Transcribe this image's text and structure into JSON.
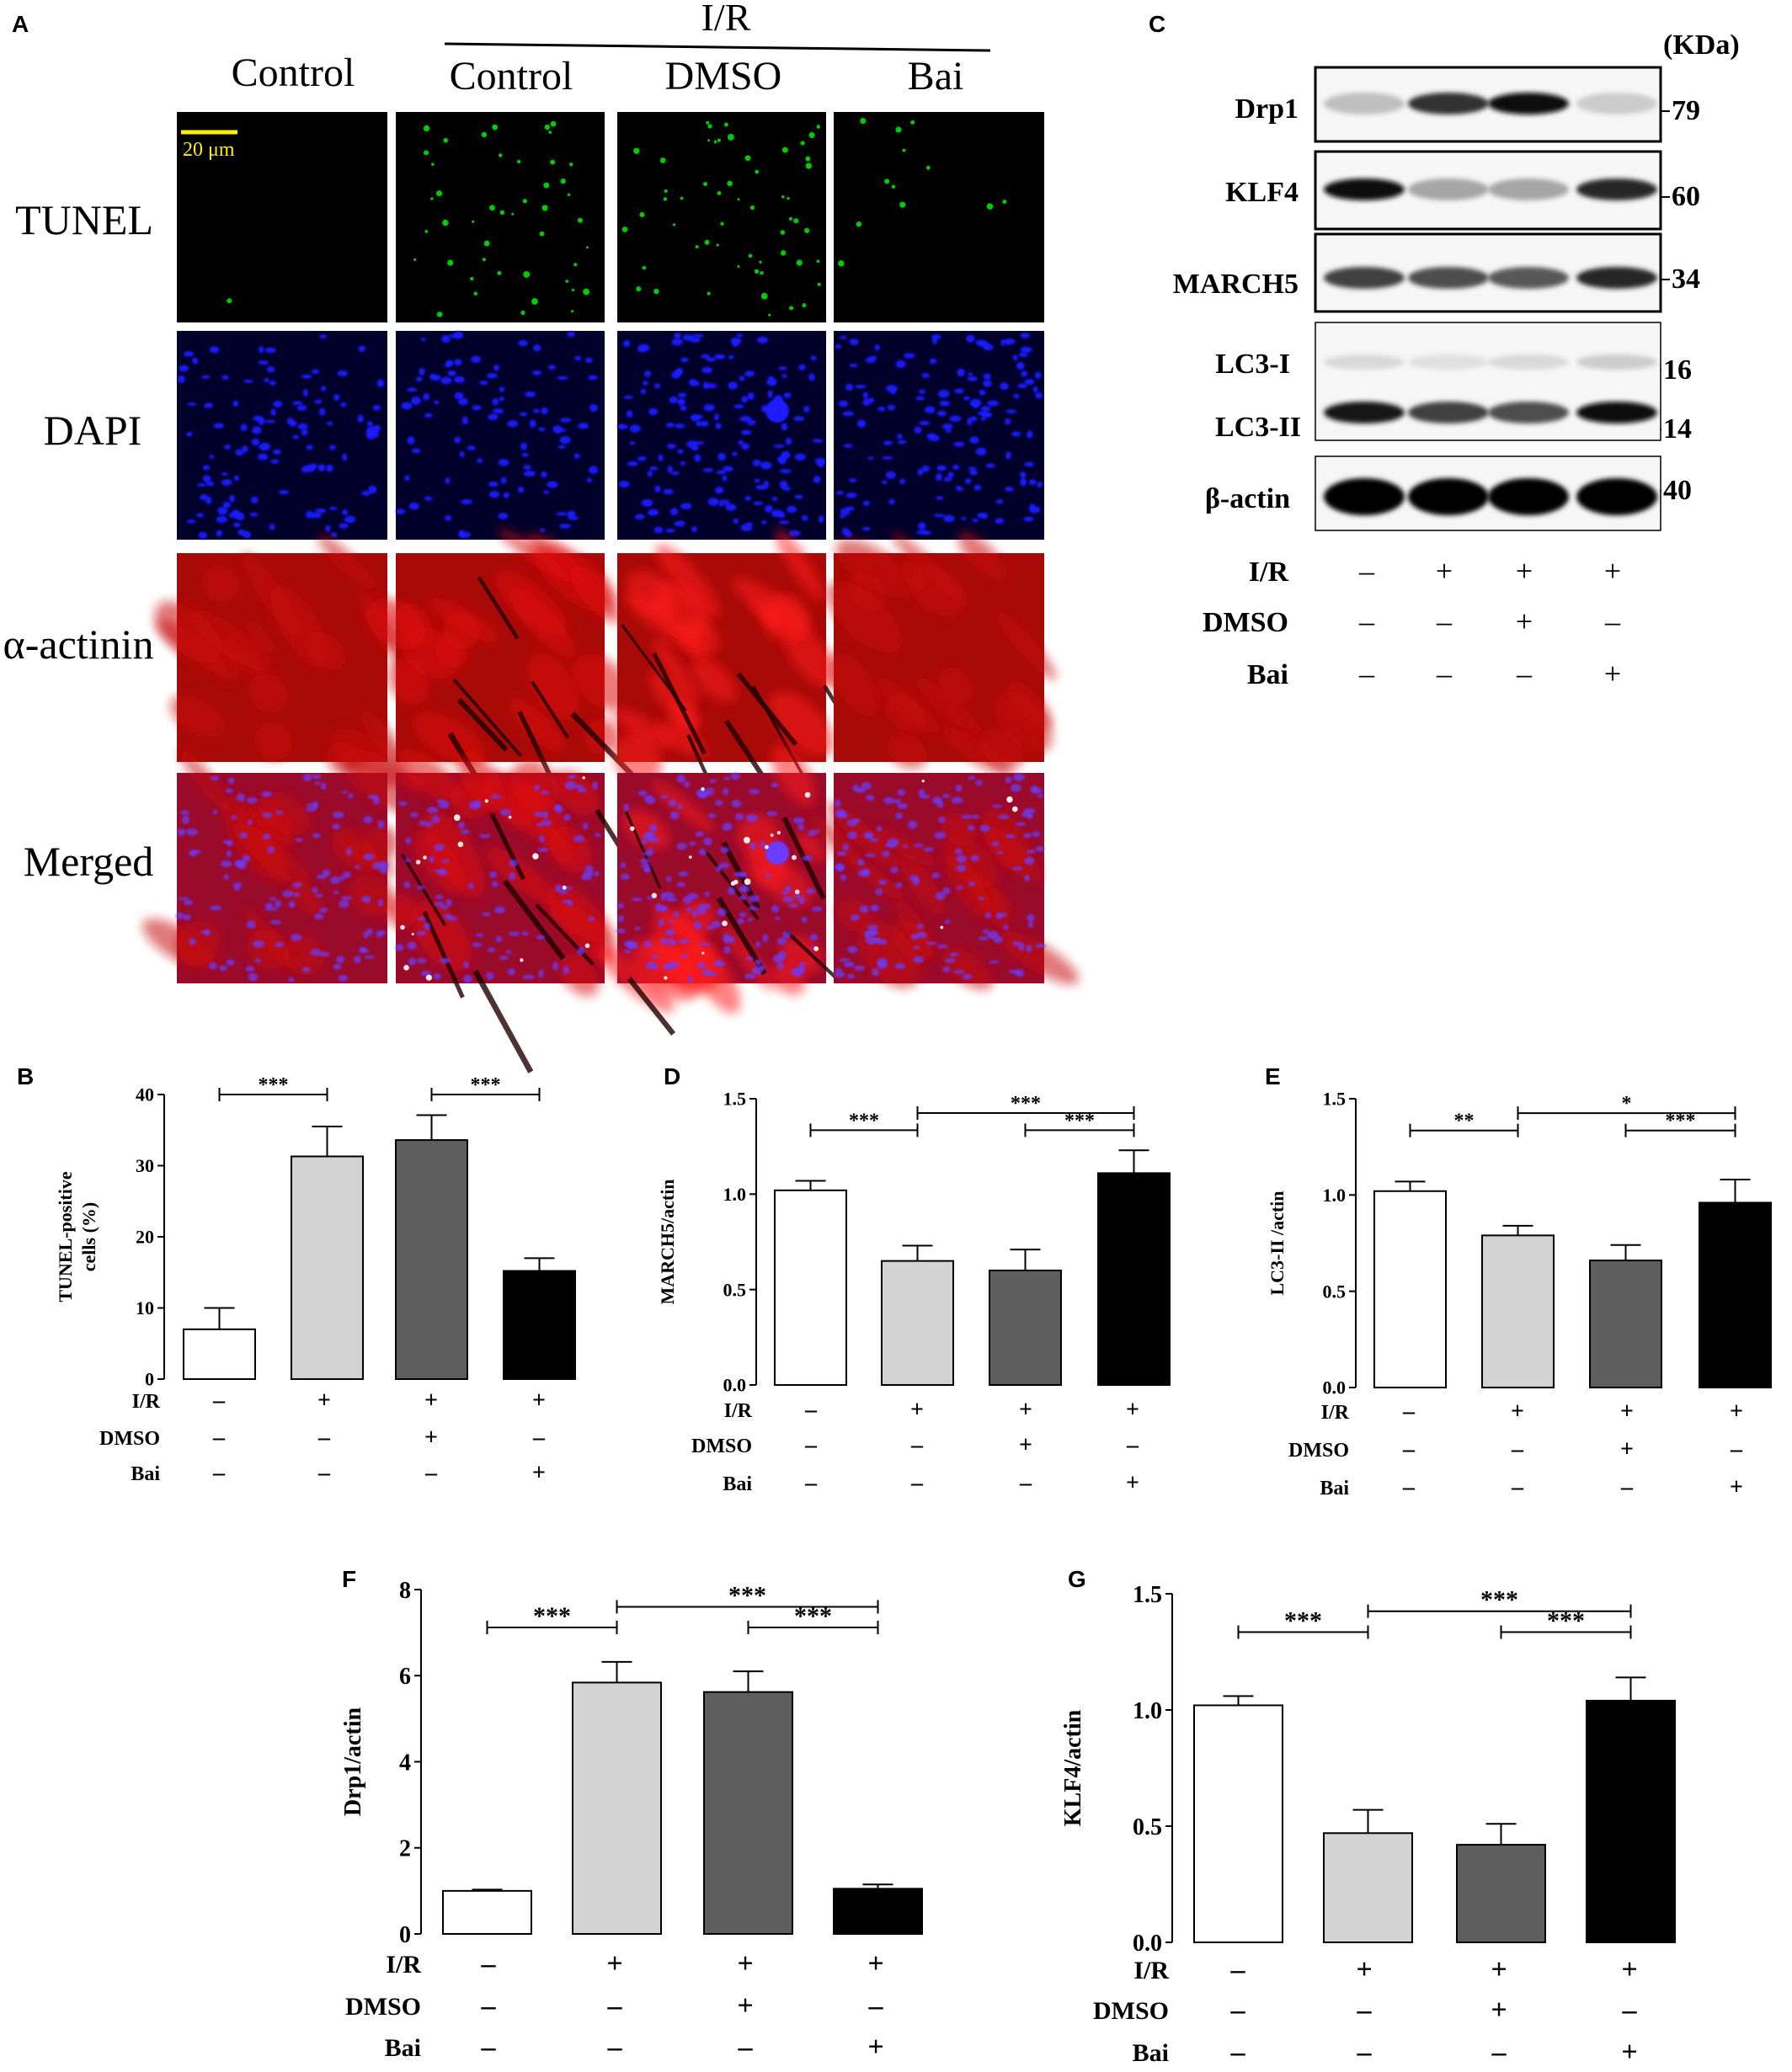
{
  "panel_a": {
    "letter": "A",
    "ir_label": "I/R",
    "column_labels": [
      "Control",
      "Control",
      "DMSO",
      "Bai"
    ],
    "row_labels": [
      "TUNEL",
      "DAPI",
      "α-actinin",
      "Merged"
    ],
    "scale_bar": "20 μm"
  },
  "panel_c": {
    "letter": "C",
    "unit_label": "(KDa)",
    "bands": [
      {
        "name": "Drp1",
        "kda": "79"
      },
      {
        "name": "KLF4",
        "kda": "60"
      },
      {
        "name": "MARCH5",
        "kda": "34"
      },
      {
        "name": "LC3-I",
        "kda": "16"
      },
      {
        "name": "LC3-II",
        "kda": "14"
      },
      {
        "name": "β-actin",
        "kda": "40"
      }
    ],
    "conditions": [
      {
        "label": "I/R",
        "signs": [
          "–",
          "+",
          "+",
          "+"
        ]
      },
      {
        "label": "DMSO",
        "signs": [
          "–",
          "–",
          "+",
          "–"
        ]
      },
      {
        "label": "Bai",
        "signs": [
          "–",
          "–",
          "–",
          "+"
        ]
      }
    ],
    "band_intensity": {
      "Drp1": [
        0.25,
        0.8,
        0.95,
        0.2
      ],
      "KLF4": [
        0.95,
        0.35,
        0.35,
        0.85
      ],
      "MARCH5": [
        0.75,
        0.7,
        0.65,
        0.85
      ],
      "LC3-I": [
        0.15,
        0.12,
        0.15,
        0.2
      ],
      "LC3-II": [
        0.9,
        0.75,
        0.7,
        0.95
      ],
      "β-actin": [
        1,
        1,
        1,
        1
      ]
    }
  },
  "conditions_rows": [
    {
      "label": "I/R",
      "signs": [
        "–",
        "+",
        "+",
        "+"
      ]
    },
    {
      "label": "DMSO",
      "signs": [
        "–",
        "–",
        "+",
        "–"
      ]
    },
    {
      "label": "Bai",
      "signs": [
        "–",
        "–",
        "–",
        "+"
      ]
    }
  ],
  "colors": {
    "bars": [
      "#ffffff",
      "#d3d3d3",
      "#5e5e5e",
      "#000000"
    ],
    "tunel": "#00e000",
    "dapi": "#1a1aff",
    "actinin": "#d40000",
    "scale_bar": "#ffee00"
  },
  "chart_data": [
    {
      "type": "bar",
      "panel": "B",
      "ylabel": "TUNEL-positive cells (%)",
      "ylabel_lines": [
        "TUNEL-positive",
        "cells (%)"
      ],
      "categories": [
        "",
        "",
        "",
        ""
      ],
      "values": [
        7,
        31.3,
        33.6,
        15.2
      ],
      "errors": [
        3,
        4.2,
        3.5,
        1.8
      ],
      "ylim": [
        0,
        40
      ],
      "yticks": [
        "0",
        "10",
        "20",
        "30",
        "40"
      ],
      "significance": [
        {
          "from": 0,
          "to": 1,
          "label": "***"
        },
        {
          "from": 2,
          "to": 3,
          "label": "***"
        }
      ]
    },
    {
      "type": "bar",
      "panel": "D",
      "ylabel": "MARCH5/actin",
      "categories": [
        "",
        "",
        "",
        ""
      ],
      "values": [
        1.02,
        0.65,
        0.6,
        1.11
      ],
      "errors": [
        0.05,
        0.08,
        0.11,
        0.12
      ],
      "ylim": [
        0,
        1.5
      ],
      "yticks": [
        "0.0",
        "0.5",
        "1.0",
        "1.5"
      ],
      "significance": [
        {
          "from": 0,
          "to": 1,
          "label": "***"
        },
        {
          "from": 1,
          "to": 3,
          "label": "***"
        },
        {
          "from": 2,
          "to": 3,
          "label": "***"
        }
      ]
    },
    {
      "type": "bar",
      "panel": "E",
      "ylabel": "LC3-II /actin",
      "categories": [
        "",
        "",
        "",
        ""
      ],
      "values": [
        1.02,
        0.79,
        0.66,
        0.96
      ],
      "errors": [
        0.05,
        0.05,
        0.08,
        0.12
      ],
      "ylim": [
        0,
        1.5
      ],
      "yticks": [
        "0.0",
        "0.5",
        "1.0",
        "1.5"
      ],
      "significance": [
        {
          "from": 0,
          "to": 1,
          "label": "**"
        },
        {
          "from": 1,
          "to": 3,
          "label": "*"
        },
        {
          "from": 2,
          "to": 3,
          "label": "***"
        }
      ]
    },
    {
      "type": "bar",
      "panel": "F",
      "ylabel": "Drp1/actin",
      "categories": [
        "",
        "",
        "",
        ""
      ],
      "values": [
        1.0,
        5.84,
        5.62,
        1.05
      ],
      "errors": [
        0.03,
        0.48,
        0.48,
        0.1
      ],
      "ylim": [
        0,
        8
      ],
      "yticks": [
        "0",
        "2",
        "4",
        "6",
        "8"
      ],
      "significance": [
        {
          "from": 0,
          "to": 1,
          "label": "***"
        },
        {
          "from": 1,
          "to": 3,
          "label": "***"
        },
        {
          "from": 2,
          "to": 3,
          "label": "***"
        }
      ]
    },
    {
      "type": "bar",
      "panel": "G",
      "ylabel": "KLF4/actin",
      "categories": [
        "",
        "",
        "",
        ""
      ],
      "values": [
        1.02,
        0.47,
        0.42,
        1.04
      ],
      "errors": [
        0.04,
        0.1,
        0.09,
        0.1
      ],
      "ylim": [
        0,
        1.5
      ],
      "yticks": [
        "0.0",
        "0.5",
        "1.0",
        "1.5"
      ],
      "significance": [
        {
          "from": 0,
          "to": 1,
          "label": "***"
        },
        {
          "from": 1,
          "to": 3,
          "label": "***"
        },
        {
          "from": 2,
          "to": 3,
          "label": "***"
        }
      ]
    }
  ]
}
